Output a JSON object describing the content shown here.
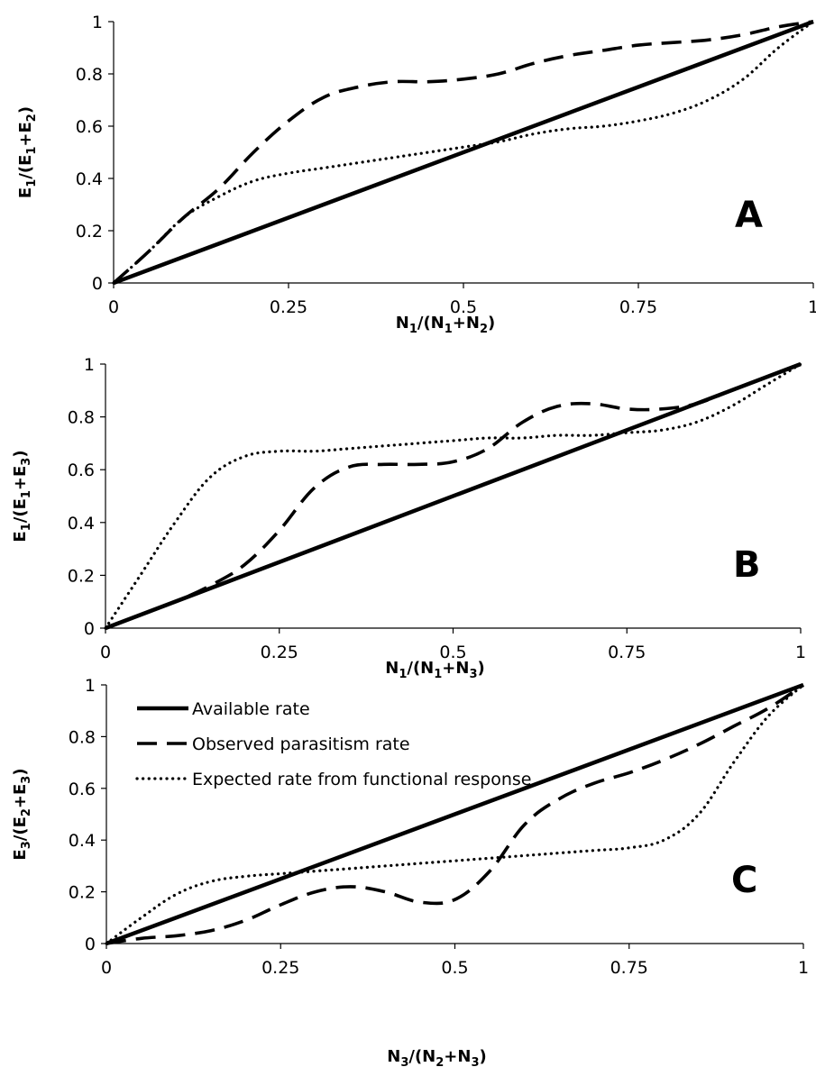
{
  "legend": [
    {
      "label": "Available rate",
      "style": "solid"
    },
    {
      "label": "Observed parasitism rate",
      "style": "dashed"
    },
    {
      "label": "Expected rate from functional response",
      "style": "dotted"
    }
  ],
  "chart_data": [
    {
      "type": "line",
      "panel": "A",
      "xlabel": {
        "main": "N",
        "sub1": "1",
        "mid": "/(N",
        "sub2": "1",
        "plus": "+N",
        "sub3": "2",
        "end": ")"
      },
      "ylabel": {
        "main": "E",
        "sub1": "1",
        "mid": "/(E",
        "sub2": "1",
        "plus": "+E",
        "sub3": "2",
        "end": ")"
      },
      "xlim": [
        0,
        1
      ],
      "ylim": [
        0,
        1
      ],
      "xticks": [
        "0",
        "0.25",
        "0.5",
        "0.75",
        "1"
      ],
      "yticks": [
        "0",
        "0.2",
        "0.4",
        "0.6",
        "0.8",
        "1"
      ],
      "grid": false,
      "series": [
        {
          "name": "Available rate",
          "style": "solid",
          "x": [
            0,
            1
          ],
          "y": [
            0,
            1
          ]
        },
        {
          "name": "Observed parasitism rate",
          "style": "dashed",
          "x": [
            0,
            0.05,
            0.1,
            0.15,
            0.2,
            0.25,
            0.3,
            0.35,
            0.4,
            0.45,
            0.5,
            0.55,
            0.6,
            0.65,
            0.7,
            0.75,
            0.8,
            0.85,
            0.9,
            0.95,
            1
          ],
          "y": [
            0,
            0.12,
            0.25,
            0.36,
            0.5,
            0.62,
            0.71,
            0.75,
            0.77,
            0.77,
            0.78,
            0.8,
            0.84,
            0.87,
            0.89,
            0.91,
            0.92,
            0.93,
            0.95,
            0.98,
            1
          ]
        },
        {
          "name": "Expected rate from functional response",
          "style": "dotted",
          "x": [
            0,
            0.05,
            0.1,
            0.15,
            0.2,
            0.25,
            0.3,
            0.35,
            0.4,
            0.45,
            0.5,
            0.55,
            0.6,
            0.65,
            0.7,
            0.75,
            0.8,
            0.85,
            0.9,
            0.95,
            1
          ],
          "y": [
            0,
            0.12,
            0.25,
            0.33,
            0.39,
            0.42,
            0.44,
            0.46,
            0.48,
            0.5,
            0.52,
            0.54,
            0.57,
            0.59,
            0.6,
            0.62,
            0.65,
            0.7,
            0.78,
            0.9,
            1
          ]
        }
      ],
      "annotation": "A"
    },
    {
      "type": "line",
      "panel": "B",
      "xlabel": {
        "main": "N",
        "sub1": "1",
        "mid": "/(N",
        "sub2": "1",
        "plus": "+N",
        "sub3": "3",
        "end": ")"
      },
      "ylabel": {
        "main": "E",
        "sub1": "1",
        "mid": "/(E",
        "sub2": "1",
        "plus": "+E",
        "sub3": "3",
        "end": ")"
      },
      "xlim": [
        0,
        1
      ],
      "ylim": [
        0,
        1
      ],
      "xticks": [
        "0",
        "0.25",
        "0.5",
        "0.75",
        "1"
      ],
      "yticks": [
        "0",
        "0.2",
        "0.4",
        "0.6",
        "0.8",
        "1"
      ],
      "grid": false,
      "series": [
        {
          "name": "Available rate",
          "style": "solid",
          "x": [
            0,
            1
          ],
          "y": [
            0,
            1
          ]
        },
        {
          "name": "Observed parasitism rate",
          "style": "dashed",
          "x": [
            0,
            0.05,
            0.1,
            0.15,
            0.2,
            0.25,
            0.3,
            0.35,
            0.4,
            0.45,
            0.5,
            0.55,
            0.6,
            0.65,
            0.7,
            0.75,
            0.8,
            0.85,
            0.9,
            0.95,
            1
          ],
          "y": [
            0,
            0.05,
            0.1,
            0.16,
            0.24,
            0.37,
            0.53,
            0.61,
            0.62,
            0.62,
            0.63,
            0.68,
            0.78,
            0.84,
            0.85,
            0.83,
            0.83,
            0.85,
            0.9,
            0.95,
            1
          ]
        },
        {
          "name": "Expected rate from functional response",
          "style": "dotted",
          "x": [
            0,
            0.05,
            0.1,
            0.15,
            0.2,
            0.25,
            0.3,
            0.35,
            0.4,
            0.45,
            0.5,
            0.55,
            0.6,
            0.65,
            0.7,
            0.75,
            0.8,
            0.85,
            0.9,
            0.95,
            1
          ],
          "y": [
            0,
            0.2,
            0.4,
            0.57,
            0.65,
            0.67,
            0.67,
            0.68,
            0.69,
            0.7,
            0.71,
            0.72,
            0.72,
            0.73,
            0.73,
            0.74,
            0.75,
            0.78,
            0.84,
            0.92,
            1
          ]
        }
      ],
      "annotation": "B"
    },
    {
      "type": "line",
      "panel": "C",
      "xlabel": {
        "main": "N",
        "sub1": "3",
        "mid": "/(N",
        "sub2": "2",
        "plus": "+N",
        "sub3": "3",
        "end": ")"
      },
      "ylabel": {
        "main": "E",
        "sub1": "3",
        "mid": "/(E",
        "sub2": "2",
        "plus": "+E",
        "sub3": "3",
        "end": ")"
      },
      "xlim": [
        0,
        1
      ],
      "ylim": [
        0,
        1
      ],
      "xticks": [
        "0",
        "0.25",
        "0.5",
        "0.75",
        "1"
      ],
      "yticks": [
        "0",
        "0.2",
        "0.4",
        "0.6",
        "0.8",
        "1"
      ],
      "grid": false,
      "series": [
        {
          "name": "Available rate",
          "style": "solid",
          "x": [
            0,
            1
          ],
          "y": [
            0,
            1
          ]
        },
        {
          "name": "Observed parasitism rate",
          "style": "dashed",
          "x": [
            0,
            0.05,
            0.1,
            0.15,
            0.2,
            0.25,
            0.3,
            0.35,
            0.4,
            0.45,
            0.5,
            0.55,
            0.6,
            0.65,
            0.7,
            0.75,
            0.8,
            0.85,
            0.9,
            0.95,
            1
          ],
          "y": [
            0,
            0.02,
            0.03,
            0.05,
            0.09,
            0.15,
            0.2,
            0.22,
            0.2,
            0.16,
            0.17,
            0.28,
            0.46,
            0.56,
            0.62,
            0.66,
            0.71,
            0.77,
            0.84,
            0.91,
            1
          ]
        },
        {
          "name": "Expected rate from functional response",
          "style": "dotted",
          "x": [
            0,
            0.05,
            0.1,
            0.15,
            0.2,
            0.25,
            0.3,
            0.35,
            0.4,
            0.45,
            0.5,
            0.55,
            0.6,
            0.65,
            0.7,
            0.75,
            0.8,
            0.85,
            0.9,
            0.95,
            1
          ],
          "y": [
            0,
            0.1,
            0.19,
            0.24,
            0.26,
            0.27,
            0.28,
            0.29,
            0.3,
            0.31,
            0.32,
            0.33,
            0.34,
            0.35,
            0.36,
            0.37,
            0.4,
            0.5,
            0.7,
            0.88,
            1
          ]
        }
      ],
      "annotation": "C"
    }
  ]
}
